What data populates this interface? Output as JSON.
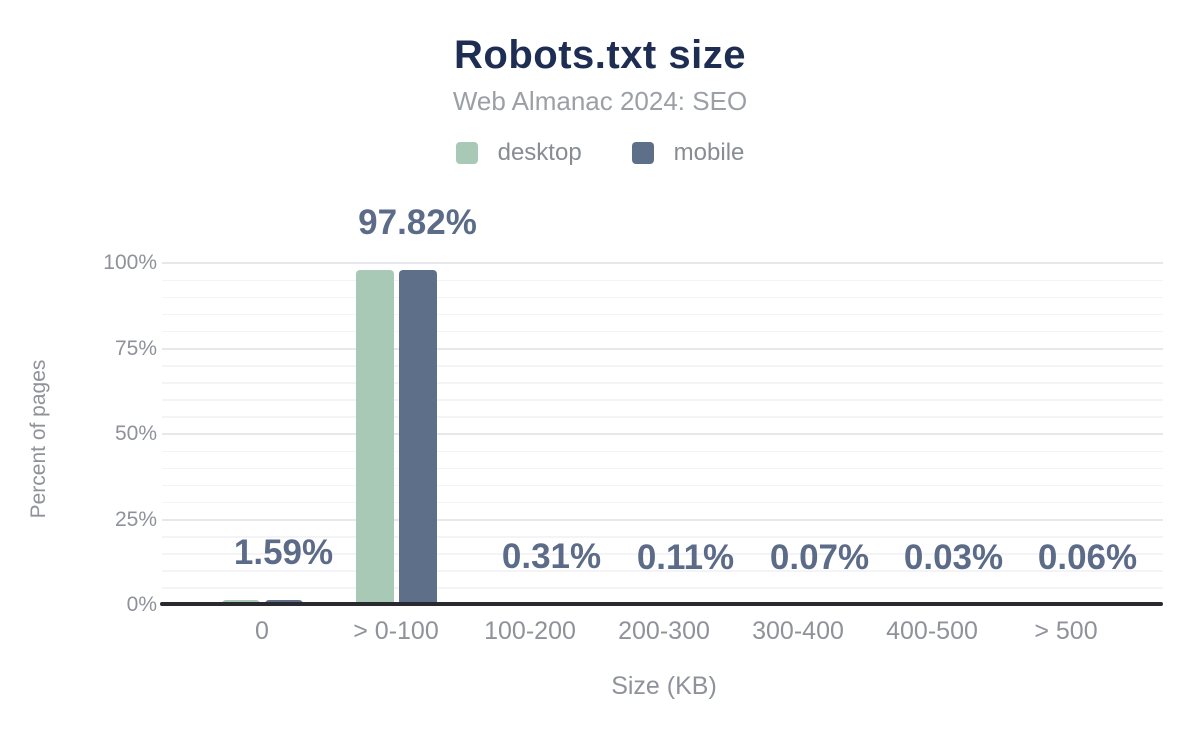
{
  "header": {
    "title": "Robots.txt size",
    "subtitle": "Web Almanac 2024: SEO"
  },
  "colors": {
    "title": "#1d2e52",
    "subtitle": "#9b9fa6",
    "legend_text": "#888c94",
    "axis_text": "#8f929a",
    "data_label": "#5c6b88",
    "axis_line": "#29292f",
    "grid_major": "#e8e8ec",
    "grid_minor": "#f4f4f6",
    "background": "#ffffff",
    "desktop": "#a7c9b6",
    "mobile": "#5e7089"
  },
  "chart_data": {
    "type": "bar",
    "title": "Robots.txt size",
    "subtitle": "Web Almanac 2024: SEO",
    "categories": [
      "0",
      "> 0-100",
      "100-200",
      "200-300",
      "300-400",
      "400-500",
      "> 500"
    ],
    "series": [
      {
        "name": "desktop",
        "color": "#a7c9b6",
        "values": [
          1.59,
          97.82,
          0.31,
          0.11,
          0.07,
          0.03,
          0.06
        ]
      },
      {
        "name": "mobile",
        "color": "#5e7089",
        "values": [
          1.59,
          97.82,
          0.31,
          0.11,
          0.07,
          0.03,
          0.06
        ]
      }
    ],
    "value_labels": [
      "1.59%",
      "97.82%",
      "0.31%",
      "0.11%",
      "0.07%",
      "0.03%",
      "0.06%"
    ],
    "value_labels_over_series": "mobile",
    "xlabel": "Size (KB)",
    "ylabel": "Percent of pages",
    "y_ticks": [
      {
        "label": "0%",
        "value": 0
      },
      {
        "label": "25%",
        "value": 25
      },
      {
        "label": "50%",
        "value": 50
      },
      {
        "label": "75%",
        "value": 75
      },
      {
        "label": "100%",
        "value": 100
      }
    ],
    "ylim": [
      0,
      100
    ],
    "grid": "horizontal minor every 5%, major every 25%",
    "legend_position": "top"
  }
}
